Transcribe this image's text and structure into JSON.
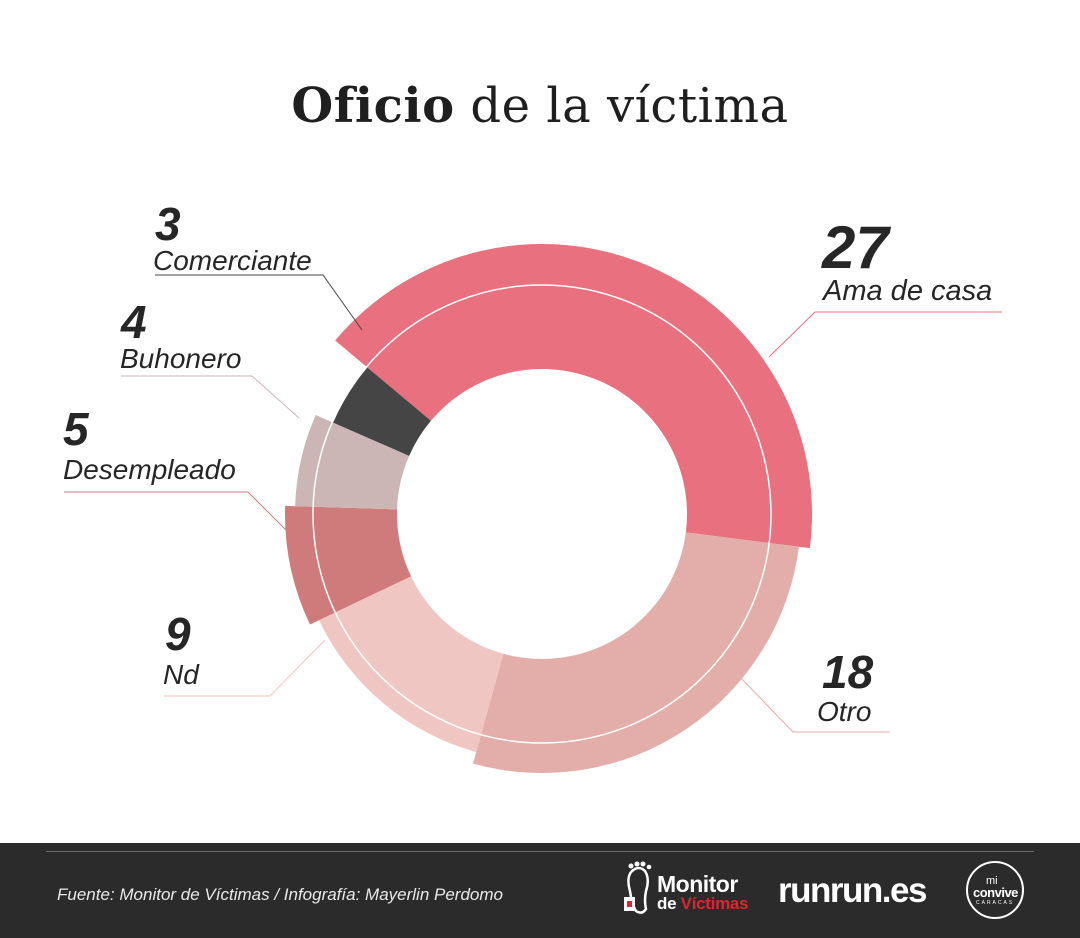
{
  "title": {
    "bold": "Oficio",
    "rest": "de la víctima"
  },
  "colors": {
    "ama_de_casa": "#e8707f",
    "otro": "#e3aea9",
    "nd": "#f0c6c3",
    "desempleado": "#cf7b7b",
    "buhonero": "#cbb5b5",
    "comerciante": "#454545"
  },
  "chart_data": {
    "type": "pie",
    "variant": "donut",
    "title": "Oficio de la víctima",
    "slices": [
      {
        "label": "Ama de casa",
        "value": 27,
        "color": "#e8707f"
      },
      {
        "label": "Otro",
        "value": 18,
        "color": "#e3aea9"
      },
      {
        "label": "Nd",
        "value": 9,
        "color": "#f0c6c3"
      },
      {
        "label": "Desempleado",
        "value": 5,
        "color": "#cf7b7b"
      },
      {
        "label": "Buhonero",
        "value": 4,
        "color": "#cbb5b5"
      },
      {
        "label": "Comerciante",
        "value": 3,
        "color": "#454545"
      }
    ]
  },
  "footer": {
    "source": "Fuente: Monitor de Víctimas / Infografía: Mayerlin Perdomo",
    "logos": {
      "monitor_line1": "Monitor",
      "monitor_line2_a": "de ",
      "monitor_line2_b": "Víctimas",
      "runrunes": "runrun.es",
      "convive_1": "mi",
      "convive_2": "convive",
      "convive_3": "CARACAS"
    }
  }
}
